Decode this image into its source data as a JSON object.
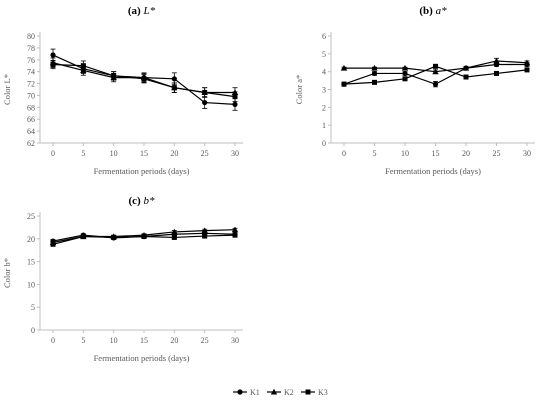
{
  "chart_data": [
    {
      "type": "line",
      "panel_label": "(a)",
      "title": "L*",
      "xlabel": "Fermentation periods (days)",
      "ylabel": "Color L*",
      "x": [
        0,
        5,
        10,
        15,
        20,
        25,
        30
      ],
      "ylim": [
        62,
        80
      ],
      "yticks": [
        62,
        64,
        66,
        68,
        70,
        72,
        74,
        76,
        78,
        80
      ],
      "series": [
        {
          "name": "K1",
          "values": [
            76.8,
            74.5,
            73.3,
            73.0,
            72.8,
            68.8,
            68.5
          ],
          "err": [
            1.0,
            0.8,
            0.7,
            0.7,
            1.0,
            1.0,
            1.0
          ]
        },
        {
          "name": "K2",
          "values": [
            75.5,
            74.2,
            73.0,
            73.0,
            71.3,
            70.5,
            70.5
          ],
          "err": [
            0.8,
            0.8,
            0.7,
            0.8,
            0.8,
            0.8,
            0.8
          ]
        },
        {
          "name": "K3",
          "values": [
            75.2,
            75.0,
            73.3,
            72.8,
            71.3,
            70.5,
            69.8
          ],
          "err": [
            0.7,
            0.8,
            0.7,
            0.7,
            0.8,
            0.8,
            0.8
          ]
        }
      ]
    },
    {
      "type": "line",
      "panel_label": "(b)",
      "title": "a*",
      "xlabel": "Fermentation periods (days)",
      "ylabel": "Color a*",
      "x": [
        0,
        5,
        10,
        15,
        20,
        25,
        30
      ],
      "ylim": [
        0,
        6
      ],
      "yticks": [
        0,
        1,
        2,
        3,
        4,
        5,
        6
      ],
      "series": [
        {
          "name": "K1",
          "values": [
            3.3,
            3.9,
            3.9,
            3.3,
            4.2,
            4.4,
            4.4
          ],
          "err": [
            0.1,
            0.1,
            0.1,
            0.15,
            0.1,
            0.1,
            0.1
          ]
        },
        {
          "name": "K2",
          "values": [
            4.2,
            4.2,
            4.2,
            4.0,
            4.2,
            4.6,
            4.5
          ],
          "err": [
            0.05,
            0.05,
            0.05,
            0.1,
            0.05,
            0.15,
            0.1
          ]
        },
        {
          "name": "K3",
          "values": [
            3.3,
            3.4,
            3.6,
            4.3,
            3.7,
            3.9,
            4.1
          ],
          "err": [
            0.1,
            0.1,
            0.1,
            0.1,
            0.1,
            0.1,
            0.1
          ]
        }
      ]
    },
    {
      "type": "line",
      "panel_label": "(c)",
      "title": "b*",
      "xlabel": "Fermentation periods (days)",
      "ylabel": "Color b*",
      "x": [
        0,
        5,
        10,
        15,
        20,
        25,
        30
      ],
      "ylim": [
        0,
        25
      ],
      "yticks": [
        0,
        5,
        10,
        15,
        20,
        25
      ],
      "series": [
        {
          "name": "K1",
          "values": [
            19.5,
            20.8,
            20.2,
            20.5,
            21.0,
            21.2,
            21.0
          ],
          "err": [
            0.3,
            0.3,
            0.3,
            0.3,
            0.3,
            0.3,
            0.3
          ]
        },
        {
          "name": "K2",
          "values": [
            19.2,
            20.5,
            20.5,
            20.8,
            21.5,
            21.8,
            22.0
          ],
          "err": [
            0.3,
            0.3,
            0.3,
            0.3,
            0.3,
            0.3,
            0.3
          ]
        },
        {
          "name": "K3",
          "values": [
            18.8,
            20.5,
            20.3,
            20.5,
            20.3,
            20.6,
            20.8
          ],
          "err": [
            0.3,
            0.3,
            0.3,
            0.3,
            0.3,
            0.3,
            0.3
          ]
        }
      ]
    }
  ],
  "legend": {
    "placement": "bottom-center",
    "items": [
      {
        "name": "K1",
        "marker": "circle"
      },
      {
        "name": "K2",
        "marker": "triangle"
      },
      {
        "name": "K3",
        "marker": "square"
      }
    ]
  }
}
